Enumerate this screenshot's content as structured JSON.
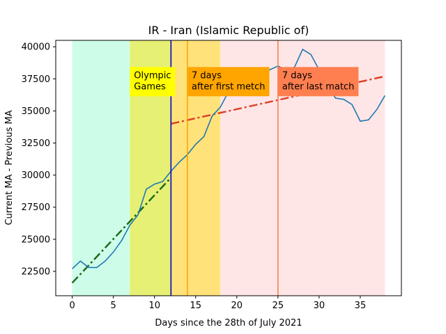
{
  "chart_data": {
    "type": "line",
    "title": "IR - Iran (Islamic Republic of)",
    "xlabel": "Days since the 28th of July 2021",
    "ylabel": "Current MA - Previous MA",
    "xlim": [
      -2,
      40
    ],
    "ylim": [
      20600,
      40500
    ],
    "xticks": [
      0,
      5,
      10,
      15,
      20,
      25,
      30,
      35
    ],
    "yticks": [
      22500,
      25000,
      27500,
      30000,
      32500,
      35000,
      37500,
      40000
    ],
    "grid": false,
    "series": [
      {
        "color": "#1f77b4",
        "x": [
          0,
          1,
          2,
          3,
          4,
          5,
          6,
          7,
          8,
          9,
          10,
          11,
          12,
          13,
          14,
          15,
          16,
          17,
          18,
          19,
          20,
          21,
          22,
          23,
          24,
          25,
          26,
          27,
          28,
          29,
          30,
          31,
          32,
          33,
          34,
          35,
          36,
          37,
          38
        ],
        "y": [
          22700,
          23300,
          22800,
          22800,
          23300,
          24000,
          24900,
          26100,
          26900,
          28900,
          29300,
          29500,
          30300,
          31000,
          31600,
          32400,
          33000,
          34600,
          35300,
          36500,
          37300,
          37600,
          37800,
          38000,
          38200,
          38500,
          38200,
          38400,
          39800,
          39400,
          38200,
          37000,
          36000,
          35900,
          35500,
          34200,
          34300,
          35100,
          36200
        ]
      }
    ],
    "trend_lines": [
      {
        "color": "#1b6b1b",
        "style": "dashdot",
        "x": [
          0,
          12
        ],
        "y": [
          21600,
          29800
        ]
      },
      {
        "color": "#e0402a",
        "style": "dashdot",
        "x": [
          12,
          38
        ],
        "y": [
          34000,
          37700
        ]
      }
    ],
    "shaded_regions": [
      {
        "x": [
          0,
          7
        ],
        "color": "#cdfde9"
      },
      {
        "x": [
          7,
          12
        ],
        "color": "#e6f074"
      },
      {
        "x": [
          12,
          18
        ],
        "color": "#ffe37a"
      },
      {
        "x": [
          18,
          38
        ],
        "color": "#ffe6e6"
      }
    ],
    "vertical_lines": [
      {
        "x": 12,
        "color": "#0000cc"
      },
      {
        "x": 14,
        "color": "#ffa500"
      },
      {
        "x": 25,
        "color": "#ff7f50"
      }
    ],
    "annotations": [
      {
        "lines": [
          "Olympic",
          "Games"
        ],
        "bg": "#ffff00",
        "x": 7,
        "y": 37500
      },
      {
        "lines": [
          "7 days",
          "after first metch"
        ],
        "bg": "#ffa500",
        "x": 14,
        "y": 37500
      },
      {
        "lines": [
          "7 days",
          "after last match"
        ],
        "bg": "#ff7f50",
        "x": 25,
        "y": 37500
      }
    ]
  }
}
